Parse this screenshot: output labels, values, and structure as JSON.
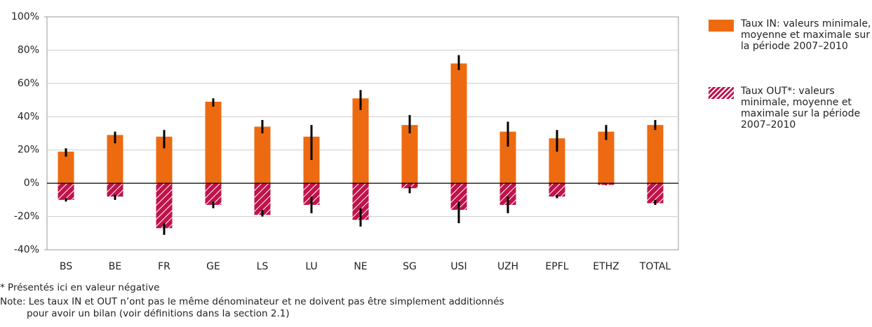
{
  "chart_data": {
    "type": "bar",
    "categories": [
      "BS",
      "BE",
      "FR",
      "GE",
      "LS",
      "LU",
      "NE",
      "SG",
      "USI",
      "UZH",
      "EPFL",
      "ETHZ",
      "TOTAL"
    ],
    "series": [
      {
        "name": "Taux IN: valeurs minimale, moyenne et maximale sur la période 2007–2010",
        "color": "#ee6a10",
        "values": [
          19,
          29,
          28,
          49,
          34,
          28,
          51,
          35,
          72,
          31,
          27,
          31,
          35
        ],
        "min": [
          16,
          24,
          21,
          46,
          30,
          14,
          44,
          30,
          68,
          22,
          19,
          26,
          32
        ],
        "max": [
          21,
          31,
          32,
          51,
          38,
          35,
          56,
          41,
          77,
          37,
          32,
          35,
          38
        ]
      },
      {
        "name": "Taux OUT*: valeurs minimale, moyenne et maximale sur la période 2007–2010",
        "color": "#c0134a",
        "values": [
          -10,
          -8,
          -27,
          -13,
          -19,
          -13,
          -22,
          -3,
          -16,
          -13,
          -8,
          -1,
          -12
        ],
        "min": [
          -11,
          -10,
          -31,
          -15,
          -20,
          -18,
          -26,
          -6,
          -24,
          -18,
          -9,
          -1,
          -13
        ],
        "max": [
          -9,
          -7,
          -24,
          -11,
          -16,
          -8,
          -15,
          -2,
          -11,
          -8,
          -7,
          -1,
          -10
        ]
      }
    ],
    "ylim": [
      -40,
      100
    ],
    "yticks": [
      {
        "value": -40,
        "label": "-40%"
      },
      {
        "value": -20,
        "label": "-20%"
      },
      {
        "value": 0,
        "label": "0%"
      },
      {
        "value": 20,
        "label": "20%"
      },
      {
        "value": 40,
        "label": "40%"
      },
      {
        "value": 60,
        "label": "60%"
      },
      {
        "value": 80,
        "label": "80%"
      },
      {
        "value": 100,
        "label": "100%"
      }
    ],
    "grid": true,
    "legend": "right",
    "footnote": "* Présentés ici en valeur négative",
    "note": "Note: Les taux IN et OUT n’ont pas le même dénominateur et ne doivent pas être simplement additionnés pour avoir un bilan (voir définitions dans la section 2.1)"
  }
}
